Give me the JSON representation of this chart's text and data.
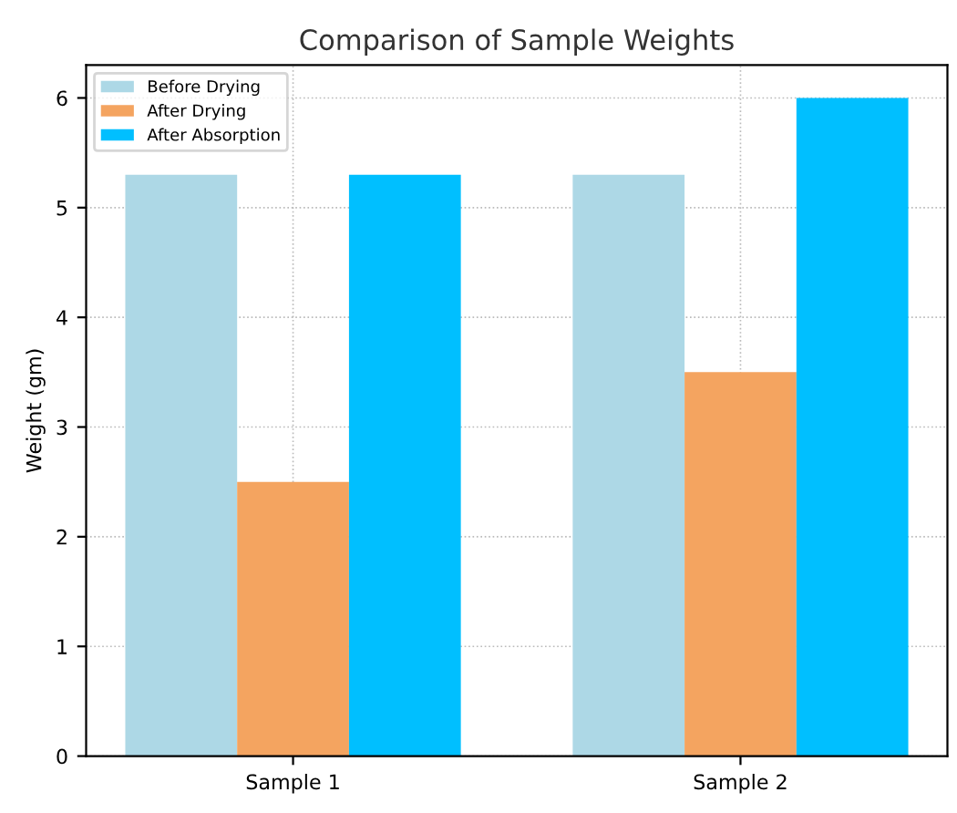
{
  "chart_data": {
    "type": "bar",
    "title": "Comparison of Sample Weights",
    "ylabel": "Weight (gm)",
    "categories": [
      "Sample 1",
      "Sample 2"
    ],
    "series": [
      {
        "name": "Before Drying",
        "color": "#add8e6",
        "values": [
          5.3,
          5.3
        ]
      },
      {
        "name": "After Drying",
        "color": "#f4a460",
        "values": [
          2.5,
          3.5
        ]
      },
      {
        "name": "After Absorption",
        "color": "#00bfff",
        "values": [
          5.3,
          6.0
        ]
      }
    ],
    "ylim": [
      0,
      6.3
    ],
    "yticks": [
      0,
      1,
      2,
      3,
      4,
      5,
      6
    ],
    "grid": true,
    "legend": "top left"
  }
}
